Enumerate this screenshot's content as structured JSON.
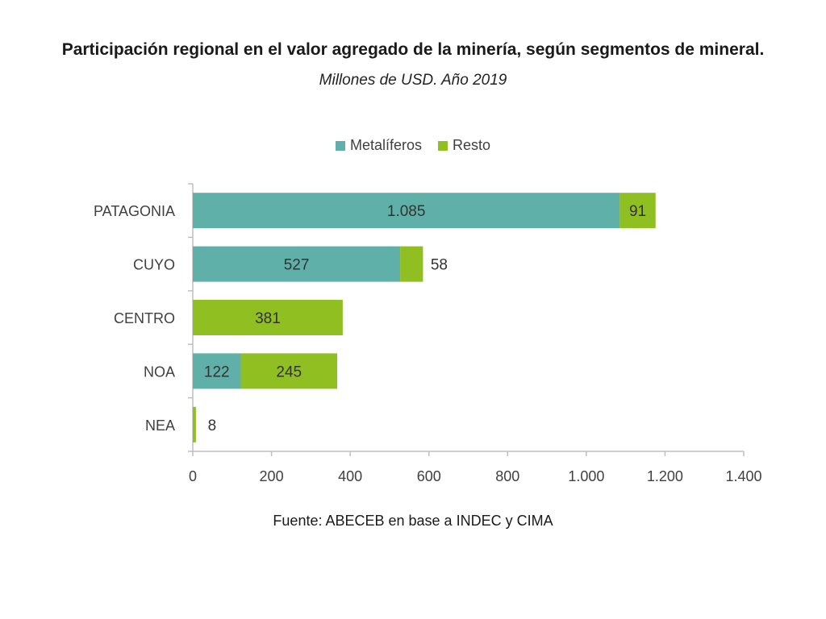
{
  "chart_data": {
    "type": "bar",
    "orientation": "horizontal",
    "stacked": true,
    "title": "Participación regional en el valor agregado de la minería, según segmentos de mineral.",
    "subtitle": "Millones de USD. Año 2019",
    "categories": [
      "PATAGONIA",
      "CUYO",
      "CENTRO",
      "NOA",
      "NEA"
    ],
    "series": [
      {
        "name": "Metalíferos",
        "color": "#5fb0a8",
        "values": [
          1085,
          527,
          0,
          122,
          0
        ],
        "labels": [
          "1.085",
          "527",
          "",
          "122",
          ""
        ]
      },
      {
        "name": "Resto",
        "color": "#8fbf21",
        "values": [
          91,
          58,
          381,
          245,
          8
        ],
        "labels": [
          "91",
          "58",
          "381",
          "245",
          "8"
        ]
      }
    ],
    "xlim": [
      0,
      1400
    ],
    "x_ticks": [
      0,
      200,
      400,
      600,
      800,
      1000,
      1200,
      1400
    ],
    "x_tick_labels": [
      "0",
      "200",
      "400",
      "600",
      "800",
      "1.000",
      "1.200",
      "1.400"
    ],
    "legend_position": "top-center",
    "grid": false
  },
  "source": "Fuente: ABECEB en base a INDEC y CIMA"
}
